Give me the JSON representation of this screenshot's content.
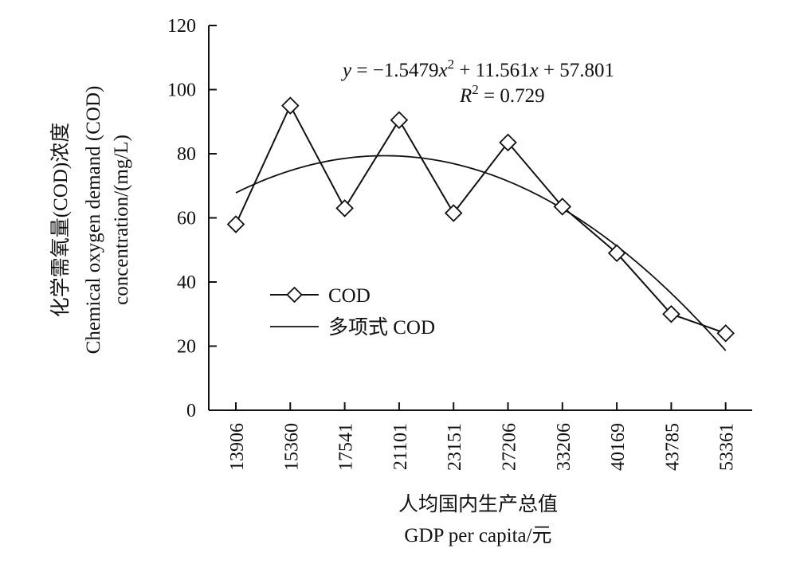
{
  "chart_data": {
    "type": "line",
    "categories": [
      "13906",
      "15360",
      "17541",
      "21101",
      "23151",
      "27206",
      "33206",
      "40169",
      "43785",
      "53361"
    ],
    "series": [
      {
        "name": "COD",
        "values": [
          58,
          95,
          63,
          90.5,
          61.5,
          83.5,
          63.5,
          49,
          30,
          24
        ]
      },
      {
        "name": "多项式 COD",
        "fit": {
          "a": -1.5479,
          "b": 11.561,
          "c": 57.801
        }
      }
    ],
    "ylim": [
      0,
      120
    ],
    "yticks": [
      "0",
      "20",
      "40",
      "60",
      "80",
      "100",
      "120"
    ],
    "ylabel_lines": [
      "化学需氧量(COD)浓度",
      "Chemical oxygen demand (COD)",
      "concentration/(mg/L)"
    ],
    "xlabel_lines": [
      "人均国内生产总值",
      "GDP per capita/元"
    ],
    "equation": {
      "y_prefix": "y",
      "eq_main": " = −1.5479",
      "x_var": "x",
      "exp": "2",
      "plus_1": " + 11.561",
      "x_var2": "x",
      "plus_2": " + 57.801",
      "r_label": "R",
      "r_exp": "2",
      "r_value": " = 0.729"
    },
    "legend": {
      "position": "middle-left",
      "items": [
        "COD",
        "多项式 COD"
      ]
    },
    "grid": false
  }
}
